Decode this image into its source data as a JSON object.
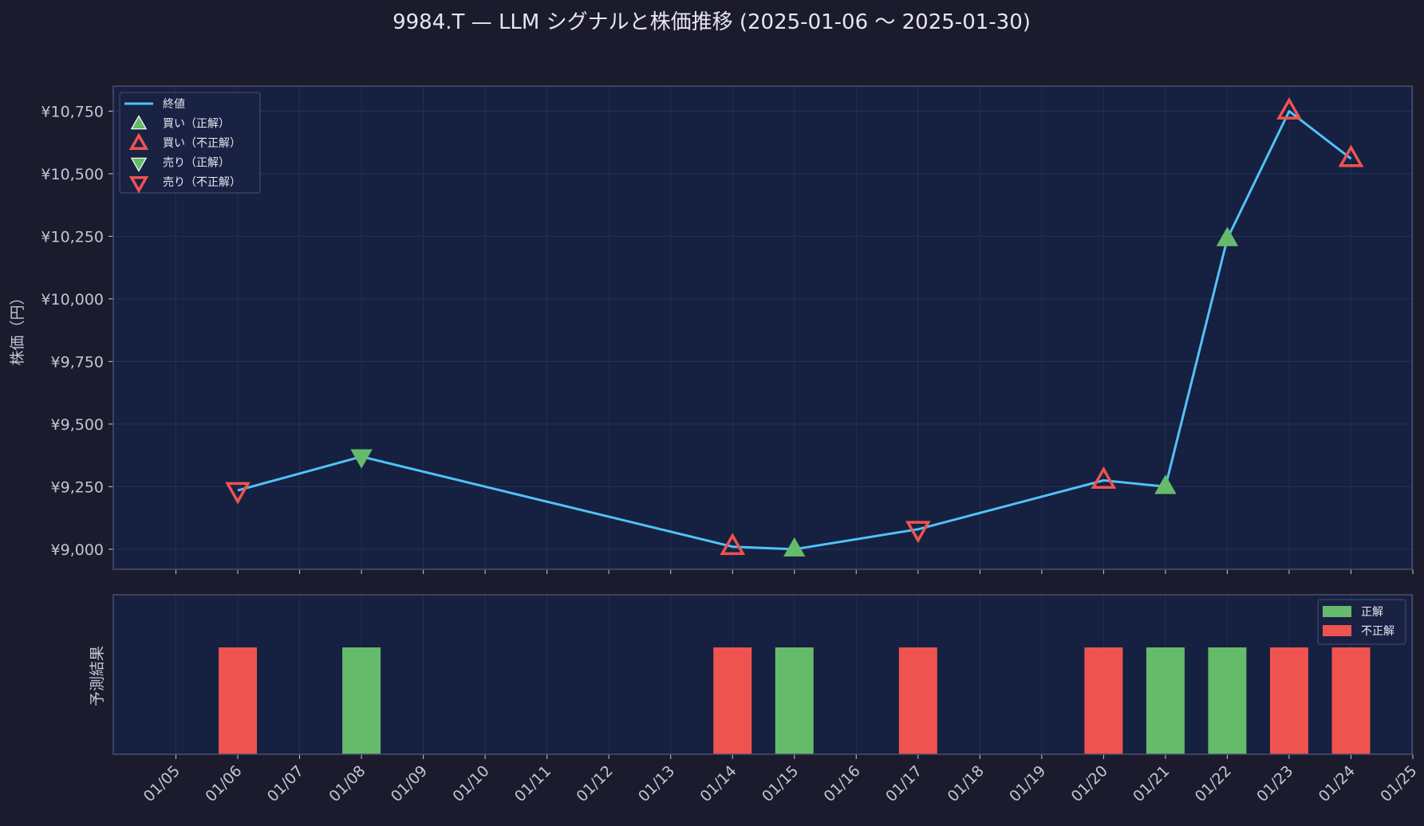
{
  "chart_data": [
    {
      "type": "line",
      "title": "9984.T — LLM シグナルと株価推移 (2025-01-06 〜 2025-01-30)",
      "ylabel": "株価（円）",
      "ylim": [
        8920,
        10850
      ],
      "yticks": [
        9000,
        9250,
        9500,
        9750,
        10000,
        10250,
        10500,
        10750
      ],
      "ytick_labels": [
        "¥9,000",
        "¥9,250",
        "¥9,500",
        "¥9,750",
        "¥10,000",
        "¥10,250",
        "¥10,500",
        "¥10,750"
      ],
      "xlim": [
        "2025-01-04",
        "2025-01-25"
      ],
      "x_ticks": [
        "2025-01-05",
        "2025-01-06",
        "2025-01-07",
        "2025-01-08",
        "2025-01-09",
        "2025-01-10",
        "2025-01-11",
        "2025-01-12",
        "2025-01-13",
        "2025-01-14",
        "2025-01-15",
        "2025-01-16",
        "2025-01-17",
        "2025-01-18",
        "2025-01-19",
        "2025-01-20",
        "2025-01-21",
        "2025-01-22",
        "2025-01-23",
        "2025-01-24",
        "2025-01-25"
      ],
      "grid": true,
      "legend_position": "top-left",
      "series": [
        {
          "name": "終値",
          "color": "#4fc3f7",
          "x": [
            "2025-01-06",
            "2025-01-08",
            "2025-01-14",
            "2025-01-15",
            "2025-01-17",
            "2025-01-20",
            "2025-01-21",
            "2025-01-22",
            "2025-01-23",
            "2025-01-24"
          ],
          "values": [
            9235,
            9370,
            9010,
            9000,
            9080,
            9275,
            9250,
            10240,
            10750,
            10560
          ]
        }
      ],
      "signals": [
        {
          "x": "2025-01-06",
          "y": 9235,
          "kind": "sell_wrong"
        },
        {
          "x": "2025-01-08",
          "y": 9370,
          "kind": "sell_correct"
        },
        {
          "x": "2025-01-14",
          "y": 9010,
          "kind": "buy_wrong"
        },
        {
          "x": "2025-01-15",
          "y": 9000,
          "kind": "buy_correct"
        },
        {
          "x": "2025-01-17",
          "y": 9080,
          "kind": "sell_wrong"
        },
        {
          "x": "2025-01-20",
          "y": 9275,
          "kind": "buy_wrong"
        },
        {
          "x": "2025-01-21",
          "y": 9250,
          "kind": "buy_correct"
        },
        {
          "x": "2025-01-22",
          "y": 10240,
          "kind": "buy_correct"
        },
        {
          "x": "2025-01-23",
          "y": 10750,
          "kind": "buy_wrong"
        },
        {
          "x": "2025-01-24",
          "y": 10560,
          "kind": "buy_wrong"
        }
      ],
      "legend": [
        {
          "kind": "line",
          "label": "終値"
        },
        {
          "kind": "buy_correct",
          "label": "買い（正解）"
        },
        {
          "kind": "buy_wrong",
          "label": "買い（不正解）"
        },
        {
          "kind": "sell_correct",
          "label": "売り（正解）"
        },
        {
          "kind": "sell_wrong",
          "label": "売り（不正解）"
        }
      ]
    },
    {
      "type": "bar",
      "ylabel": "予測結果",
      "x_tick_labels": [
        "01/05",
        "01/06",
        "01/07",
        "01/08",
        "01/09",
        "01/10",
        "01/11",
        "01/12",
        "01/13",
        "01/14",
        "01/15",
        "01/16",
        "01/17",
        "01/18",
        "01/19",
        "01/20",
        "01/21",
        "01/22",
        "01/23",
        "01/24",
        "01/25"
      ],
      "legend_position": "top-right",
      "legend": [
        {
          "label": "正解",
          "result": "correct"
        },
        {
          "label": "不正解",
          "result": "wrong"
        }
      ],
      "bars": [
        {
          "x": "2025-01-06",
          "value": 1,
          "result": "wrong"
        },
        {
          "x": "2025-01-08",
          "value": 1,
          "result": "correct"
        },
        {
          "x": "2025-01-14",
          "value": 1,
          "result": "wrong"
        },
        {
          "x": "2025-01-15",
          "value": 1,
          "result": "correct"
        },
        {
          "x": "2025-01-17",
          "value": 1,
          "result": "wrong"
        },
        {
          "x": "2025-01-20",
          "value": 1,
          "result": "wrong"
        },
        {
          "x": "2025-01-21",
          "value": 1,
          "result": "correct"
        },
        {
          "x": "2025-01-22",
          "value": 1,
          "result": "correct"
        },
        {
          "x": "2025-01-23",
          "value": 1,
          "result": "wrong"
        },
        {
          "x": "2025-01-24",
          "value": 1,
          "result": "wrong"
        }
      ]
    }
  ],
  "colors": {
    "background": "#1c1b2e",
    "panel": "#162040",
    "panel_border": "#4a4e6e",
    "grid": "#263357",
    "price_line": "#4fc3f7",
    "correct": "#66bb6a",
    "wrong": "#ef5350",
    "text": "#e6e6f0",
    "tick_text": "#c2c4d4"
  }
}
